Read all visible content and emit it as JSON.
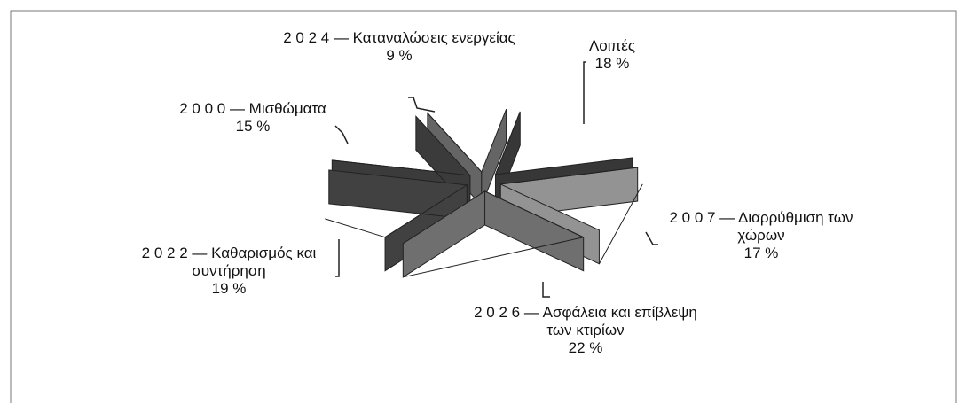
{
  "chart_data": {
    "type": "pie",
    "categories": [
      "Λοιπές",
      "2 0 0 7 — Διαρρύθμιση των χώρων",
      "2 0 2 6 — Ασφάλεια και επίβλεψη των κτιρίων",
      "2 0 2 2 — Καθαρισμός και συντήρηση",
      "2 0 0 0 — Μισθώματα",
      "2 0 2 4 — Καταναλώσεις ενεργείας"
    ],
    "values": [
      18,
      17,
      22,
      19,
      15,
      9
    ],
    "value_labels": [
      "18 %",
      "17 %",
      "22 %",
      "19 %",
      "15 %",
      "9 %"
    ],
    "colors": [
      "#555555",
      "#e2e2e2",
      "#aaaaaa",
      "#646464",
      "#5a5a5a",
      "#9c9c9c"
    ]
  }
}
